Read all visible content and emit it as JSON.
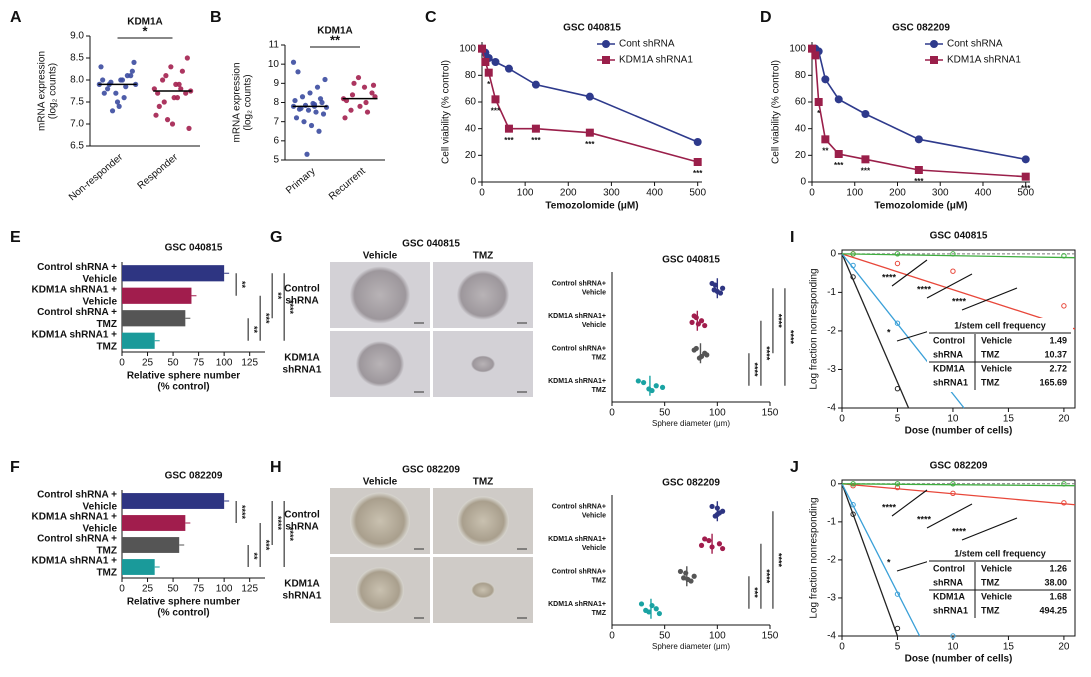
{
  "chart_data": [
    {
      "type": "strip",
      "panel": "A",
      "title": "KDM1A",
      "ylabel": [
        "mRNA expression",
        "(log₂ counts)"
      ],
      "categories": [
        "Non-responder",
        "Responder"
      ],
      "colors": [
        "#3b4ba0",
        "#a3204f"
      ],
      "points": [
        [
          7.9,
          8.0,
          7.8,
          8.1,
          7.7,
          8.3,
          7.6,
          7.9,
          8.2,
          7.5,
          8.0,
          7.85,
          7.95,
          8.4,
          7.4,
          7.7,
          8.1,
          7.3,
          7.9,
          8.0
        ],
        [
          7.8,
          7.6,
          8.0,
          7.7,
          8.3,
          7.2,
          7.9,
          7.5,
          8.5,
          7.0,
          7.7,
          7.8,
          8.1,
          6.9,
          7.6,
          7.4,
          8.2,
          7.1,
          7.75,
          7.9
        ]
      ],
      "means": [
        7.9,
        7.75
      ],
      "significance": "*",
      "ylim": [
        6.5,
        9.0
      ],
      "yticks": [
        6.5,
        {
          "value": 7,
          "label": "7.0"
        },
        7.5,
        {
          "value": 8,
          "label": "8.0"
        },
        8.5,
        {
          "value": 9,
          "label": "9.0"
        }
      ]
    },
    {
      "type": "strip",
      "panel": "B",
      "title": "KDM1A",
      "ylabel": [
        "mRNA expression",
        "(log₂ counts)"
      ],
      "categories": [
        "Primary",
        "Recurrent"
      ],
      "colors": [
        "#3b4ba0",
        "#a3204f"
      ],
      "points": [
        [
          7.8,
          7.9,
          7.7,
          8.0,
          7.6,
          8.1,
          7.5,
          8.3,
          7.4,
          8.5,
          7.2,
          8.8,
          7.0,
          9.2,
          6.8,
          9.6,
          6.5,
          7.85,
          7.75,
          7.95,
          7.65,
          8.2,
          5.3,
          10.1,
          7.8
        ],
        [
          8.2,
          8.8,
          7.6,
          8.5,
          9.3,
          7.2,
          8.0,
          8.4,
          8.9,
          7.8,
          8.1,
          7.5,
          9.0,
          8.3
        ]
      ],
      "means": [
        7.8,
        8.2
      ],
      "significance": "**",
      "ylim": [
        5,
        11
      ],
      "yticks": [
        5,
        6,
        7,
        8,
        9,
        10,
        11
      ]
    },
    {
      "type": "line",
      "panel": "C",
      "title": "GSC 040815",
      "xlabel": "Temozolomide (μM)",
      "ylabel": [
        "Cell viability (% control)"
      ],
      "x": [
        0,
        7.8,
        15.6,
        31.25,
        62.5,
        125,
        250,
        500
      ],
      "series": [
        {
          "name": "Cont shRNA",
          "color": "#2e3a8c",
          "marker": "circle",
          "values": [
            100,
            97,
            93,
            90,
            85,
            73,
            64,
            30
          ],
          "significance": [
            null,
            null,
            null,
            null,
            null,
            null,
            null,
            null
          ]
        },
        {
          "name": "KDM1A shRNA1",
          "color": "#9a1f4a",
          "marker": "square",
          "values": [
            100,
            90,
            82,
            62,
            40,
            40,
            37,
            15
          ],
          "significance": [
            null,
            null,
            "*",
            "***",
            "***",
            "***",
            "***",
            "***"
          ]
        }
      ],
      "xlim": [
        0,
        510
      ],
      "xticks": [
        0,
        100,
        200,
        300,
        400,
        500
      ],
      "ylim": [
        0,
        105
      ],
      "yticks": [
        0,
        20,
        40,
        60,
        80,
        100
      ]
    },
    {
      "type": "line",
      "panel": "D",
      "title": "GSC 082209",
      "xlabel": "Temozolomide (μM)",
      "ylabel": [
        "Cell viability (% control)"
      ],
      "x": [
        0,
        7.8,
        15.6,
        31.25,
        62.5,
        125,
        250,
        500
      ],
      "series": [
        {
          "name": "Cont shRNA",
          "color": "#2e3a8c",
          "marker": "circle",
          "values": [
            100,
            100,
            98,
            77,
            62,
            51,
            32,
            17
          ],
          "significance": [
            null,
            null,
            null,
            null,
            null,
            null,
            null,
            null
          ]
        },
        {
          "name": "KDM1A shRNA1",
          "color": "#9a1f4a",
          "marker": "square",
          "values": [
            100,
            95,
            60,
            32,
            21,
            17,
            9,
            4
          ],
          "significance": [
            null,
            null,
            "*",
            "**",
            "***",
            "***",
            "***",
            "***"
          ]
        }
      ],
      "xlim": [
        0,
        510
      ],
      "xticks": [
        0,
        100,
        200,
        300,
        400,
        500
      ],
      "ylim": [
        0,
        105
      ],
      "yticks": [
        0,
        20,
        40,
        60,
        80,
        100
      ]
    },
    {
      "type": "hbar",
      "panel": "E",
      "title": "GSC 040815",
      "xlabel": [
        "Relative sphere number",
        "(% control)"
      ],
      "categories": [
        [
          "Control shRNA +",
          "Vehicle"
        ],
        [
          "KDM1A shRNA1 +",
          "Vehicle"
        ],
        [
          "Control shRNA +",
          "TMZ"
        ],
        [
          "KDM1A shRNA1 +",
          "TMZ"
        ]
      ],
      "values": [
        100,
        68,
        62,
        32
      ],
      "colors": [
        "#2e3582",
        "#a11d4d",
        "#555555",
        "#1a9a9a"
      ],
      "brackets": [
        {
          "span": [
            0,
            1
          ],
          "label": "**"
        },
        {
          "span": [
            2,
            3
          ],
          "label": "**"
        },
        {
          "span": [
            1,
            3
          ],
          "label": "***"
        },
        {
          "span": [
            0,
            2
          ],
          "label": "**"
        },
        {
          "span": [
            0,
            3
          ],
          "label": "****"
        }
      ],
      "xlim": [
        0,
        140
      ],
      "xticks": [
        0,
        25,
        50,
        75,
        100,
        125
      ]
    },
    {
      "type": "hbar",
      "panel": "F",
      "title": "GSC 082209",
      "xlabel": [
        "Relative sphere number",
        "(% control)"
      ],
      "categories": [
        [
          "Control shRNA +",
          "Vehicle"
        ],
        [
          "KDM1A shRNA1 +",
          "Vehicle"
        ],
        [
          "Control shRNA +",
          "TMZ"
        ],
        [
          "KDM1A shRNA1 +",
          "TMZ"
        ]
      ],
      "values": [
        100,
        62,
        56,
        32
      ],
      "colors": [
        "#2e3582",
        "#a11d4d",
        "#555555",
        "#1a9a9a"
      ],
      "brackets": [
        {
          "span": [
            0,
            1
          ],
          "label": "****"
        },
        {
          "span": [
            2,
            3
          ],
          "label": "**"
        },
        {
          "span": [
            1,
            3
          ],
          "label": "***"
        },
        {
          "span": [
            0,
            2
          ],
          "label": "****"
        },
        {
          "span": [
            0,
            3
          ],
          "label": "****"
        }
      ],
      "xlim": [
        0,
        140
      ],
      "xticks": [
        0,
        25,
        50,
        75,
        100,
        125
      ]
    },
    {
      "type": "dots",
      "title": "GSC 040815",
      "xlabel": "Sphere diameter (μm)",
      "categories": [
        [
          "Control shRNA+",
          "Vehicle"
        ],
        [
          "KDM1A shRNA1+",
          "Vehicle"
        ],
        [
          "Control shRNA+",
          "TMZ"
        ],
        [
          "KDM1A shRNA1+",
          "TMZ"
        ]
      ],
      "colors": [
        "#2e3582",
        "#a11d4d",
        "#555555",
        "#1aa3a3"
      ],
      "points": [
        [
          95,
          100,
          105,
          98,
          103,
          97
        ],
        [
          78,
          82,
          85,
          80,
          88,
          76
        ],
        [
          80,
          85,
          88,
          78,
          83,
          90
        ],
        [
          25,
          35,
          42,
          30,
          38,
          48
        ]
      ],
      "means": [
        100,
        81,
        84,
        36
      ],
      "brackets": [
        {
          "span": [
            2,
            3
          ],
          "label": "****"
        },
        {
          "span": [
            1,
            3
          ],
          "label": "****"
        },
        {
          "span": [
            0,
            2
          ],
          "label": "****"
        },
        {
          "span": [
            0,
            3
          ],
          "label": "****"
        }
      ],
      "xlim": [
        0,
        150
      ],
      "xticks": [
        0,
        50,
        100,
        150
      ]
    },
    {
      "type": "dots",
      "title": "GSC 082209",
      "xlabel": "Sphere diameter (μm)",
      "categories": [
        [
          "Control shRNA+",
          "Vehicle"
        ],
        [
          "KDM1A shRNA1+",
          "Vehicle"
        ],
        [
          "Control shRNA+",
          "TMZ"
        ],
        [
          "KDM1A shRNA1+",
          "TMZ"
        ]
      ],
      "colors": [
        "#2e3582",
        "#a11d4d",
        "#555555",
        "#1aa3a3"
      ],
      "points": [
        [
          95,
          100,
          105,
          100,
          98,
          102
        ],
        [
          88,
          95,
          102,
          92,
          105,
          85
        ],
        [
          65,
          72,
          78,
          70,
          75,
          68
        ],
        [
          28,
          35,
          42,
          38,
          45,
          32
        ]
      ],
      "means": [
        100,
        95,
        71,
        37
      ],
      "brackets": [
        {
          "span": [
            2,
            3
          ],
          "label": "***"
        },
        {
          "span": [
            1,
            3
          ],
          "label": "****"
        },
        {
          "span": [
            0,
            3
          ],
          "label": "****"
        }
      ],
      "xlim": [
        0,
        150
      ],
      "xticks": [
        0,
        50,
        100,
        150
      ]
    },
    {
      "type": "lda",
      "panel": "I",
      "title": "GSC 040815",
      "xlabel": "Dose (number of cells)",
      "ylabel": [
        "Log fraction nonresponding"
      ],
      "series": [
        {
          "color": "#222222",
          "x": [
            1,
            5
          ],
          "values": [
            -0.6,
            -3.5
          ],
          "fit_x": [
            0,
            6
          ],
          "fit": [
            0,
            -4
          ]
        },
        {
          "color": "#e8473a",
          "x": [
            1,
            5,
            10,
            20
          ],
          "values": [
            0,
            -0.25,
            -0.45,
            -1.35
          ],
          "fit_x": [
            0,
            21
          ],
          "fit": [
            0,
            -1.95
          ]
        },
        {
          "color": "#3aa0d8",
          "x": [
            1,
            5,
            10
          ],
          "values": [
            -0.3,
            -1.8,
            -3.2
          ],
          "fit_x": [
            0,
            11
          ],
          "fit": [
            0,
            -4
          ]
        },
        {
          "color": "#3fae3f",
          "x": [
            1,
            5,
            10,
            20
          ],
          "values": [
            0,
            0,
            0,
            -0.05
          ],
          "fit_x": [
            0,
            21
          ],
          "fit": [
            0,
            -0.1
          ]
        }
      ],
      "stars": [
        "****",
        "****",
        "****",
        "*"
      ],
      "table": {
        "title": "1/stem cell frequency",
        "rows": [
          [
            "Control",
            "Vehicle",
            "1.49"
          ],
          [
            "shRNA",
            "TMZ",
            "10.37"
          ],
          [
            "KDM1A",
            "Vehicle",
            "2.72"
          ],
          [
            "shRNA1",
            "TMZ",
            "165.69"
          ]
        ],
        "colors": [
          "#222222",
          "#e8473a",
          "#3aa0d8",
          "#3fae3f"
        ]
      },
      "xlim": [
        0,
        21
      ],
      "xticks": [
        0,
        5,
        10,
        15,
        20
      ],
      "ylim": [
        -4,
        0.1
      ],
      "yticks": [
        0,
        -1,
        -2,
        -3,
        -4
      ]
    },
    {
      "type": "lda",
      "panel": "J",
      "title": "GSC 082209",
      "xlabel": "Dose (number of cells)",
      "ylabel": [
        "Log fraction nonresponding"
      ],
      "series": [
        {
          "color": "#222222",
          "x": [
            1,
            5
          ],
          "values": [
            -0.8,
            -3.8
          ],
          "fit_x": [
            0,
            5
          ],
          "fit": [
            0,
            -4
          ]
        },
        {
          "color": "#e8473a",
          "x": [
            1,
            5,
            10,
            20
          ],
          "values": [
            -0.05,
            -0.1,
            -0.25,
            -0.5
          ],
          "fit_x": [
            0,
            21
          ],
          "fit": [
            0,
            -0.55
          ]
        },
        {
          "color": "#3aa0d8",
          "x": [
            1,
            5,
            10
          ],
          "values": [
            -0.55,
            -2.9,
            -4
          ],
          "fit_x": [
            0,
            7
          ],
          "fit": [
            0,
            -4
          ]
        },
        {
          "color": "#3fae3f",
          "x": [
            1,
            5,
            10,
            20
          ],
          "values": [
            0,
            0,
            0,
            0
          ],
          "fit_x": [
            0,
            21
          ],
          "fit": [
            0,
            -0.05
          ]
        }
      ],
      "stars": [
        "****",
        "****",
        "****",
        "*"
      ],
      "table": {
        "title": "1/stem cell frequency",
        "rows": [
          [
            "Control",
            "Vehicle",
            "1.26"
          ],
          [
            "shRNA",
            "TMZ",
            "38.00"
          ],
          [
            "KDM1A",
            "Vehicle",
            "1.68"
          ],
          [
            "shRNA1",
            "TMZ",
            "494.25"
          ]
        ],
        "colors": [
          "#222222",
          "#e8473a",
          "#3aa0d8",
          "#3fae3f"
        ]
      },
      "xlim": [
        0,
        21
      ],
      "xticks": [
        0,
        5,
        10,
        15,
        20
      ],
      "ylim": [
        -4,
        0.1
      ],
      "yticks": [
        0,
        -1,
        -2,
        -3,
        -4
      ]
    }
  ],
  "image_panels": [
    {
      "panel": "G",
      "title": "GSC 040815",
      "columns": [
        "Vehicle",
        "TMZ"
      ],
      "rows": [
        [
          "Control",
          "shRNA"
        ],
        [
          "KDM1A",
          "shRNA1"
        ]
      ]
    },
    {
      "panel": "H",
      "title": "GSC 082209",
      "columns": [
        "Vehicle",
        "TMZ"
      ],
      "rows": [
        [
          "Control",
          "shRNA"
        ],
        [
          "KDM1A",
          "shRNA1"
        ]
      ]
    }
  ]
}
